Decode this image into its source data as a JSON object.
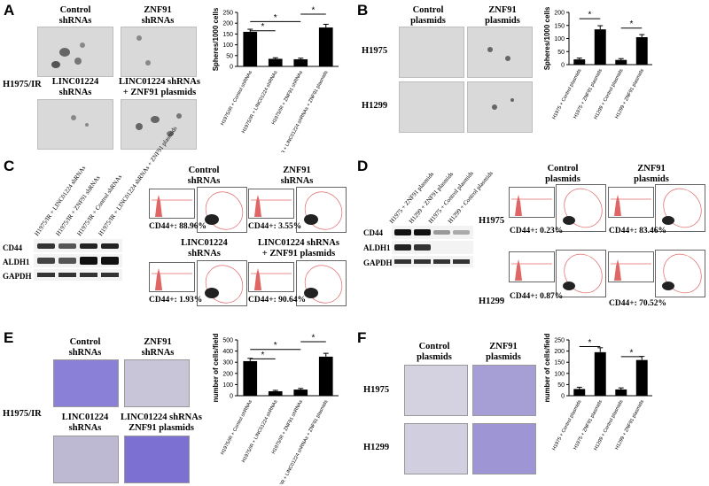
{
  "panels": {
    "A": {
      "letter": "A",
      "row_label": "H1975/IR",
      "captions": [
        "Control\nshRNAs",
        "ZNF91\nshRNAs",
        "LINC01224\nshRNAs",
        "LINC01224 shRNAs\n+ ZNF91 plasmids"
      ]
    },
    "B": {
      "letter": "B",
      "col_captions": [
        "Control\nplasmids",
        "ZNF91\nplasmids"
      ],
      "row_labels": [
        "H1975",
        "H1299"
      ]
    },
    "C": {
      "letter": "C",
      "lanes": [
        "H1975/IR + LINC01224 shRNAs",
        "H1975/IR + ZNF91 shRNAs",
        "H1975/IR + Control shRNAs",
        "H1975/IR + LINC01224 shRNAs + ZNF91 plasmids"
      ],
      "blot_rows": [
        "CD44",
        "ALDH1",
        "GAPDH"
      ],
      "captions": [
        "Control\nshRNAs",
        "ZNF91\nshRNAs",
        "LINC01224\nshRNAs",
        "LINC01224 shRNAs\n+ ZNF91 plasmids"
      ],
      "percents": [
        "CD44+: 88.96%",
        "CD44+: 3.55%",
        "CD44+: 1.93%",
        "CD44+: 90.64%"
      ]
    },
    "D": {
      "letter": "D",
      "lanes": [
        "H1975 + ZNF91 plasmids",
        "H1299 + ZNF91 plasmids",
        "H1975 + Control plasmids",
        "H1299 + Control plasmids"
      ],
      "blot_rows": [
        "CD44",
        "ALDH1",
        "GAPDH"
      ],
      "col_captions": [
        "Control\nplasmids",
        "ZNF91\nplasmids"
      ],
      "row_labels": [
        "H1975",
        "H1299"
      ],
      "percents": [
        "CD44+: 0.23%",
        "CD44+: 83.46%",
        "CD44+: 0.87%",
        "CD44+: 70.52%"
      ]
    },
    "E": {
      "letter": "E",
      "row_label": "H1975/IR",
      "captions": [
        "Control\nshRNAs",
        "ZNF91\nshRNAs",
        "LINC01224\nshRNAs",
        "LINC01224 shRNAs\nZNF91 plasmids"
      ]
    },
    "F": {
      "letter": "F",
      "col_captions": [
        "Control\nplasmids",
        "ZNF91\nplasmids"
      ],
      "row_labels": [
        "H1975",
        "H1299"
      ]
    }
  },
  "colors": {
    "bar": "#000000",
    "histogram": "#e06666",
    "crystal_violet": "#6a5acd"
  },
  "chart_data": [
    {
      "id": "A",
      "type": "bar",
      "ylabel": "Spheres/1000 cells",
      "ylim": [
        0,
        250
      ],
      "yticks": [
        "0",
        "50",
        "100",
        "150",
        "200",
        "250"
      ],
      "categories": [
        "H1975/IR + Control shRNAs",
        "H1975/IR + LINC01224 shRNAs",
        "H1975/IR + ZNF91 shRNAs",
        "H1975/IR + LINC01224 shRNAs + ZNF91 plasmids"
      ],
      "values": [
        160,
        35,
        33,
        180
      ],
      "errors": [
        12,
        5,
        5,
        15
      ],
      "significance": [
        "*",
        "*",
        "*"
      ]
    },
    {
      "id": "B",
      "type": "bar",
      "ylabel": "Spheres/1000 cells",
      "ylim": [
        0,
        200
      ],
      "yticks": [
        "0",
        "50",
        "100",
        "150",
        "200"
      ],
      "categories": [
        "H1975 + Control plasmids",
        "H1975 + ZNF91 plasmids",
        "H1299 + Control plasmids",
        "H1299 + ZNF91 plasmids"
      ],
      "values": [
        20,
        135,
        18,
        105
      ],
      "errors": [
        5,
        14,
        5,
        10
      ],
      "significance": [
        "*",
        "*"
      ]
    },
    {
      "id": "E",
      "type": "bar",
      "ylabel": "number of cells/field",
      "ylim": [
        0,
        500
      ],
      "yticks": [
        "0",
        "100",
        "200",
        "300",
        "400",
        "500"
      ],
      "categories": [
        "H1975/IR + Control shRNAs",
        "H1975/IR + LINC01224 shRNAs",
        "H1975/IR + ZNF91 shRNAs",
        "H1975/IR + LINC01224 shRNAs + ZNF91 plasmids"
      ],
      "values": [
        310,
        40,
        55,
        350
      ],
      "errors": [
        25,
        8,
        10,
        30
      ],
      "significance": [
        "*",
        "*",
        "*"
      ]
    },
    {
      "id": "F",
      "type": "bar",
      "ylabel": "number of cells/field",
      "ylim": [
        0,
        250
      ],
      "yticks": [
        "0",
        "50",
        "100",
        "150",
        "200",
        "250"
      ],
      "categories": [
        "H1975 + Control plasmids",
        "H1975 + ZNF91 plasmids",
        "H1299 + Control plasmids",
        "H1299 + ZNF91 plasmids"
      ],
      "values": [
        30,
        195,
        28,
        160
      ],
      "errors": [
        8,
        20,
        7,
        16
      ],
      "significance": [
        "*",
        "*"
      ]
    }
  ]
}
